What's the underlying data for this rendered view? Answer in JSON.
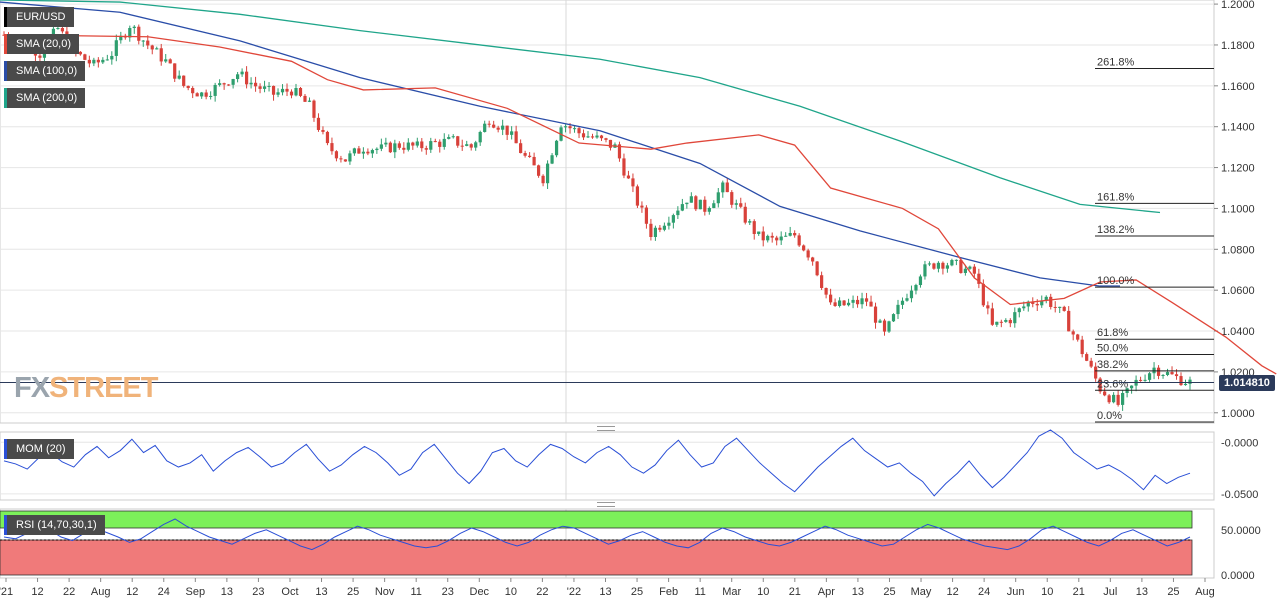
{
  "instrument": "EUR/USD",
  "legend": {
    "symbol": "EUR/USD",
    "sma20": "SMA (20,0)",
    "sma100": "SMA (100,0)",
    "sma200": "SMA (200,0)",
    "mom": "MOM (20)",
    "rsi": "RSI (14,70,30,1)"
  },
  "colors": {
    "sma20": "#e0473a",
    "sma100": "#2a4da8",
    "sma200": "#1fa58a",
    "bull": "#2e9e6e",
    "bear": "#d8413a",
    "indicator": "#2a4fd6",
    "rsi_overbought": "#7cf05a",
    "rsi_oversold": "#f07a7a",
    "fib": "#222222",
    "brand_fx": "#9aa4ad",
    "brand_street": "#f0b37a"
  },
  "watermark": {
    "fx": "FX",
    "street": "STREET"
  },
  "current_price": "1.014810",
  "chart_data": [
    {
      "type": "candlestick",
      "title": "EUR/USD",
      "ylim": [
        0.995,
        1.202
      ],
      "y_ticks": [
        "1.2000",
        "1.1800",
        "1.1600",
        "1.1400",
        "1.1200",
        "1.1000",
        "1.0800",
        "1.0600",
        "1.0400",
        "1.0200",
        "1.0000"
      ],
      "x_ticks": [
        "'21",
        "12",
        "22",
        "Aug",
        "12",
        "24",
        "Sep",
        "13",
        "23",
        "Oct",
        "13",
        "25",
        "Nov",
        "11",
        "23",
        "Dec",
        "10",
        "22",
        "'22",
        "13",
        "25",
        "Feb",
        "11",
        "Mar",
        "10",
        "21",
        "Apr",
        "13",
        "25",
        "May",
        "12",
        "24",
        "Jun",
        "10",
        "21",
        "Jul",
        "13",
        "25",
        "Aug"
      ],
      "anchors": [
        [
          0,
          1.185
        ],
        [
          10,
          1.182
        ],
        [
          20,
          1.176
        ],
        [
          30,
          1.188
        ],
        [
          40,
          1.176
        ],
        [
          50,
          1.17
        ],
        [
          60,
          1.176
        ],
        [
          70,
          1.19
        ],
        [
          80,
          1.18
        ],
        [
          90,
          1.172
        ],
        [
          100,
          1.16
        ],
        [
          110,
          1.156
        ],
        [
          120,
          1.16
        ],
        [
          130,
          1.166
        ],
        [
          140,
          1.16
        ],
        [
          150,
          1.156
        ],
        [
          160,
          1.158
        ],
        [
          170,
          1.15
        ],
        [
          180,
          1.13
        ],
        [
          190,
          1.124
        ],
        [
          200,
          1.13
        ],
        [
          210,
          1.129
        ],
        [
          220,
          1.131
        ],
        [
          230,
          1.13
        ],
        [
          240,
          1.132
        ],
        [
          250,
          1.133
        ],
        [
          260,
          1.13
        ],
        [
          270,
          1.144
        ],
        [
          280,
          1.138
        ],
        [
          290,
          1.125
        ],
        [
          300,
          1.115
        ],
        [
          310,
          1.142
        ],
        [
          320,
          1.137
        ],
        [
          330,
          1.134
        ],
        [
          340,
          1.13
        ],
        [
          350,
          1.108
        ],
        [
          360,
          1.088
        ],
        [
          370,
          1.096
        ],
        [
          380,
          1.105
        ],
        [
          390,
          1.1
        ],
        [
          400,
          1.11
        ],
        [
          410,
          1.098
        ],
        [
          420,
          1.086
        ],
        [
          430,
          1.084
        ],
        [
          440,
          1.087
        ],
        [
          450,
          1.075
        ],
        [
          460,
          1.052
        ],
        [
          470,
          1.053
        ],
        [
          480,
          1.055
        ],
        [
          490,
          1.038
        ],
        [
          500,
          1.055
        ],
        [
          510,
          1.069
        ],
        [
          520,
          1.074
        ],
        [
          530,
          1.072
        ],
        [
          540,
          1.068
        ],
        [
          550,
          1.042
        ],
        [
          560,
          1.046
        ],
        [
          570,
          1.054
        ],
        [
          580,
          1.056
        ],
        [
          590,
          1.047
        ],
        [
          600,
          1.03
        ],
        [
          610,
          1.012
        ],
        [
          620,
          1.004
        ],
        [
          630,
          1.015
        ],
        [
          640,
          1.022
        ],
        [
          650,
          1.018
        ],
        [
          660,
          1.0148
        ]
      ],
      "sma20": [
        [
          0,
          1.185
        ],
        [
          80,
          1.184
        ],
        [
          120,
          1.179
        ],
        [
          160,
          1.172
        ],
        [
          180,
          1.163
        ],
        [
          200,
          1.158
        ],
        [
          240,
          1.159
        ],
        [
          280,
          1.149
        ],
        [
          320,
          1.132
        ],
        [
          360,
          1.129
        ],
        [
          380,
          1.132
        ],
        [
          420,
          1.136
        ],
        [
          440,
          1.131
        ],
        [
          460,
          1.11
        ],
        [
          480,
          1.105
        ],
        [
          500,
          1.1
        ],
        [
          520,
          1.09
        ],
        [
          540,
          1.066
        ],
        [
          560,
          1.053
        ],
        [
          590,
          1.056
        ],
        [
          610,
          1.064
        ],
        [
          630,
          1.065
        ],
        [
          650,
          1.054
        ],
        [
          680,
          1.037
        ],
        [
          700,
          1.023
        ],
        [
          708,
          1.019
        ]
      ],
      "sma100": [
        [
          0,
          1.201
        ],
        [
          120,
          1.196
        ],
        [
          240,
          1.182
        ],
        [
          360,
          1.164
        ],
        [
          480,
          1.15
        ],
        [
          600,
          1.138
        ],
        [
          700,
          1.122
        ],
        [
          780,
          1.101
        ],
        [
          860,
          1.089
        ],
        [
          960,
          1.076
        ],
        [
          1040,
          1.066
        ],
        [
          1100,
          1.062
        ],
        [
          1120,
          1.062
        ]
      ],
      "sma200": [
        [
          0,
          1.202
        ],
        [
          120,
          1.201
        ],
        [
          240,
          1.195
        ],
        [
          360,
          1.187
        ],
        [
          480,
          1.18
        ],
        [
          600,
          1.173
        ],
        [
          700,
          1.164
        ],
        [
          800,
          1.15
        ],
        [
          900,
          1.133
        ],
        [
          1000,
          1.115
        ],
        [
          1080,
          1.102
        ],
        [
          1160,
          1.098
        ]
      ],
      "fibonacci": [
        {
          "label": "261.8%",
          "value": 1.1685
        },
        {
          "label": "161.8%",
          "value": 1.1025
        },
        {
          "label": "138.2%",
          "value": 1.0865
        },
        {
          "label": "100.0%",
          "value": 1.0615
        },
        {
          "label": "61.8%",
          "value": 1.036
        },
        {
          "label": "50.0%",
          "value": 1.0285
        },
        {
          "label": "38.2%",
          "value": 1.0205
        },
        {
          "label": "23.6%",
          "value": 1.011
        },
        {
          "label": "0.0%",
          "value": 0.9955
        }
      ],
      "current": 1.01481
    },
    {
      "type": "line",
      "title": "MOM (20)",
      "ylim": [
        -0.056,
        0.01
      ],
      "y_ticks": [
        "-0.0000",
        "-0.0500"
      ],
      "values": [
        -0.018,
        -0.021,
        -0.026,
        -0.015,
        -0.01,
        -0.019,
        -0.024,
        -0.012,
        -0.004,
        -0.015,
        -0.008,
        0.003,
        -0.01,
        -0.003,
        -0.018,
        -0.024,
        -0.02,
        -0.012,
        -0.028,
        -0.018,
        -0.01,
        -0.005,
        -0.014,
        -0.024,
        -0.02,
        -0.01,
        -0.002,
        -0.016,
        -0.028,
        -0.022,
        -0.012,
        -0.004,
        -0.01,
        -0.02,
        -0.032,
        -0.026,
        -0.01,
        -0.002,
        -0.016,
        -0.03,
        -0.04,
        -0.028,
        -0.01,
        -0.006,
        -0.018,
        -0.024,
        -0.012,
        -0.002,
        -0.006,
        -0.014,
        -0.02,
        -0.01,
        -0.004,
        -0.012,
        -0.024,
        -0.03,
        -0.022,
        -0.008,
        0.002,
        -0.012,
        -0.024,
        -0.02,
        -0.004,
        0.004,
        -0.008,
        -0.02,
        -0.03,
        -0.04,
        -0.048,
        -0.036,
        -0.024,
        -0.014,
        -0.004,
        0.004,
        -0.008,
        -0.016,
        -0.024,
        -0.02,
        -0.03,
        -0.038,
        -0.052,
        -0.04,
        -0.03,
        -0.018,
        -0.032,
        -0.044,
        -0.034,
        -0.022,
        -0.01,
        0.006,
        0.012,
        0.004,
        -0.01,
        -0.018,
        -0.026,
        -0.022,
        -0.028,
        -0.036,
        -0.046,
        -0.032,
        -0.04,
        -0.034,
        -0.03
      ],
      "line_color": "indicator"
    },
    {
      "type": "line",
      "title": "RSI (14,70,30,1)",
      "ylim": [
        0,
        70
      ],
      "y_ticks": [
        "50.0000",
        "0.0000"
      ],
      "bands": {
        "overbought": 70,
        "oversold": 30
      },
      "values": [
        40,
        38,
        44,
        52,
        48,
        40,
        36,
        44,
        50,
        45,
        40,
        34,
        38,
        46,
        54,
        60,
        52,
        46,
        40,
        36,
        32,
        38,
        44,
        48,
        42,
        36,
        30,
        26,
        32,
        40,
        46,
        52,
        48,
        42,
        38,
        34,
        30,
        28,
        30,
        36,
        44,
        50,
        46,
        40,
        34,
        30,
        34,
        42,
        48,
        52,
        50,
        44,
        38,
        32,
        36,
        42,
        46,
        40,
        34,
        30,
        28,
        34,
        44,
        50,
        46,
        40,
        36,
        32,
        30,
        34,
        40,
        46,
        52,
        48,
        42,
        38,
        34,
        30,
        32,
        40,
        48,
        54,
        50,
        44,
        38,
        34,
        30,
        28,
        26,
        30,
        38,
        48,
        52,
        46,
        40,
        34,
        30,
        36,
        44,
        48,
        42,
        36,
        30,
        34,
        40
      ],
      "line_color": "indicator"
    }
  ]
}
